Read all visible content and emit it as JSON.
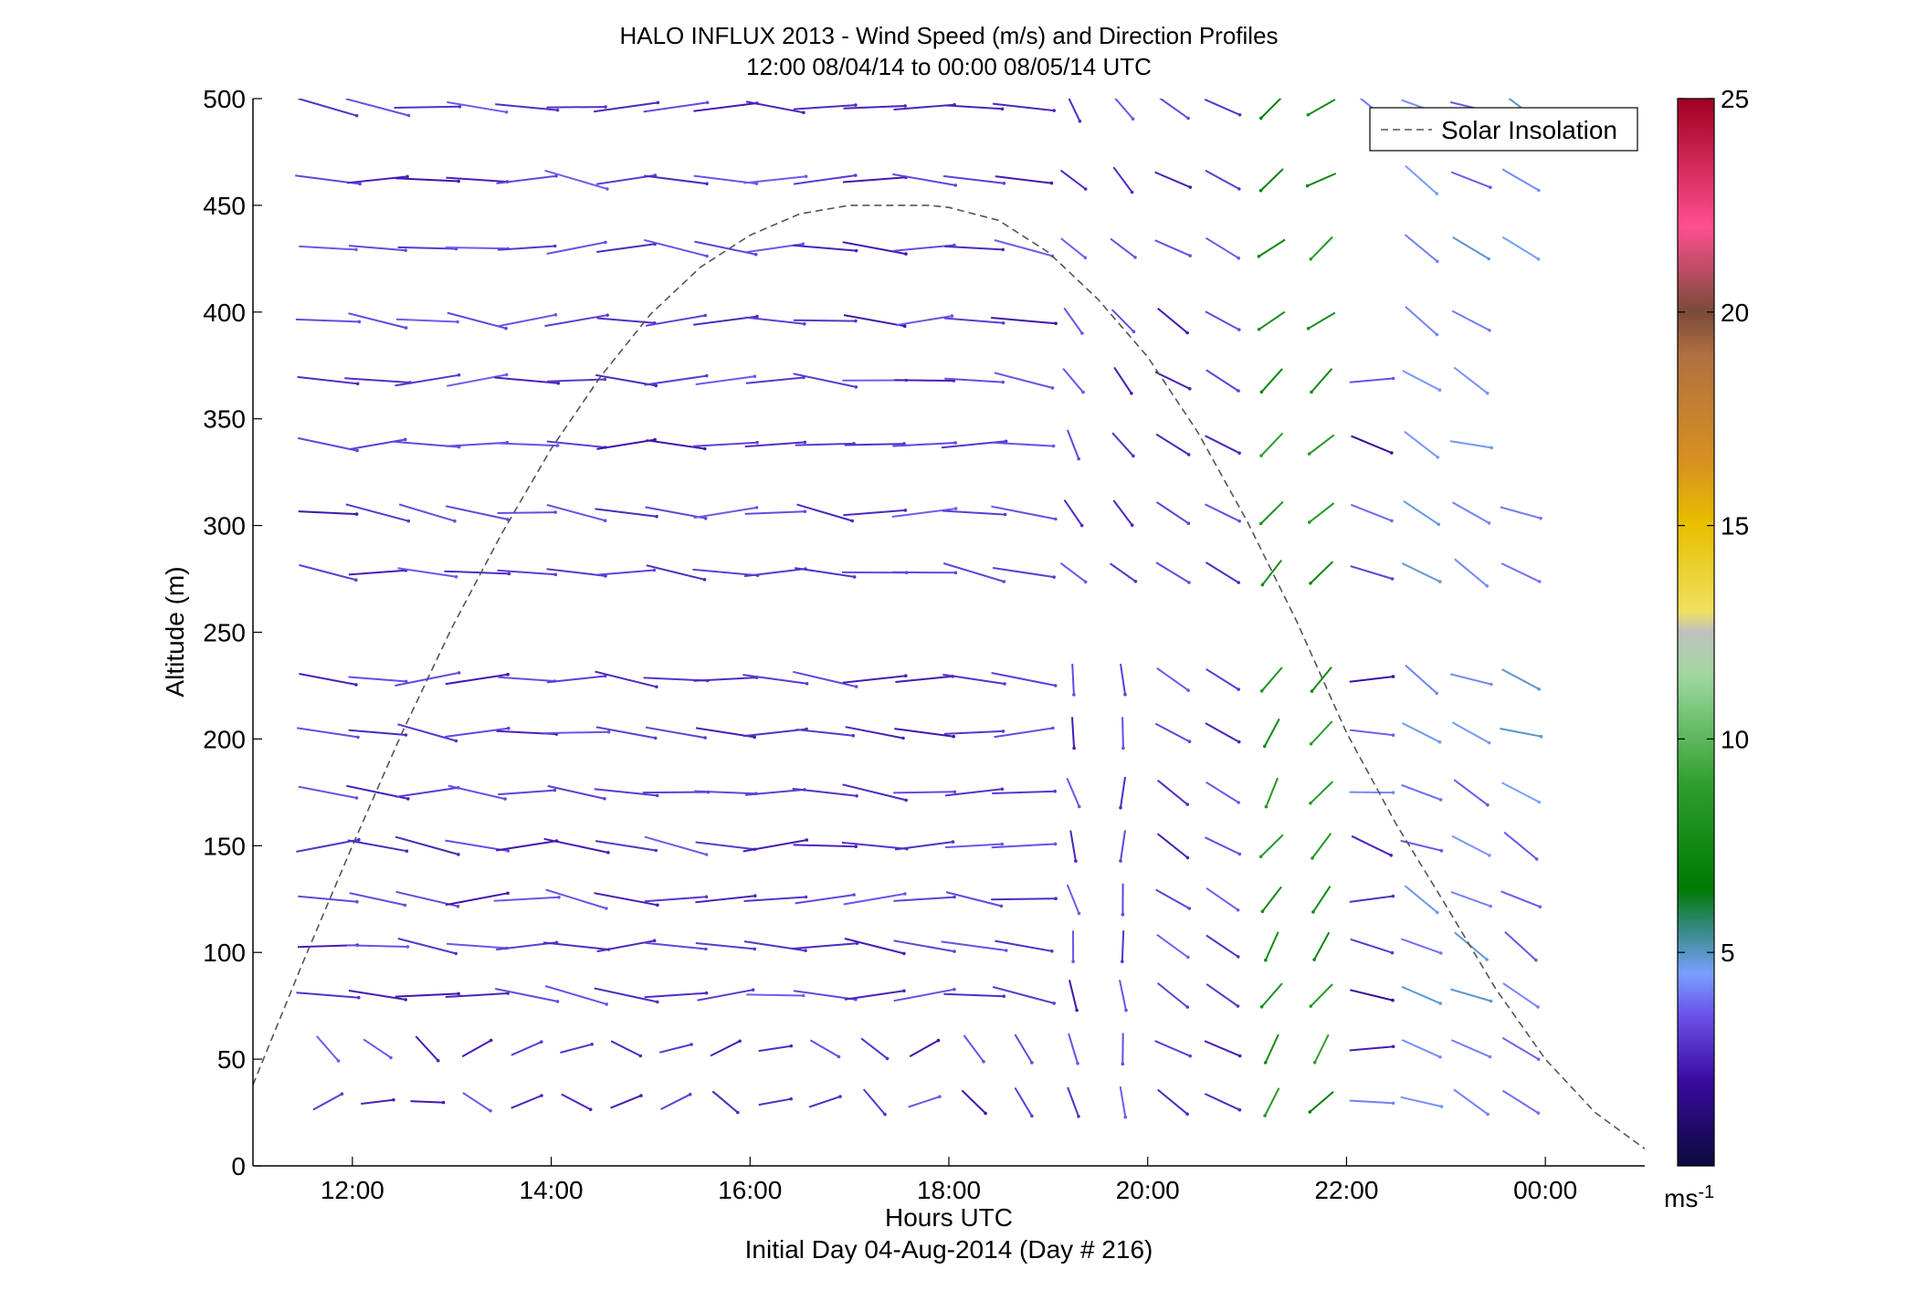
{
  "chart_data": {
    "type": "line",
    "title": "HALO INFLUX 2013 - Wind Speed (m/s) and Direction Profiles",
    "subtitle": "12:00 08/04/14 to 00:00 08/05/14  UTC",
    "xlabel": "Hours UTC",
    "xlabel2": "Initial Day 04-Aug-2014 (Day # 216)",
    "ylabel": "Altitude (m)",
    "xlim": [
      11.0,
      25.0
    ],
    "ylim": [
      0,
      500
    ],
    "x_ticks": [
      12,
      14,
      16,
      18,
      20,
      22,
      24
    ],
    "x_tick_labels": [
      "12:00",
      "14:00",
      "16:00",
      "18:00",
      "20:00",
      "22:00",
      "00:00"
    ],
    "y_ticks": [
      0,
      50,
      100,
      150,
      200,
      250,
      300,
      350,
      400,
      450,
      500
    ],
    "y_tick_labels": [
      "0",
      "50",
      "100",
      "150",
      "200",
      "250",
      "300",
      "350",
      "400",
      "450",
      "500"
    ],
    "grid": false,
    "legend": {
      "placement": "top-right",
      "entries": [
        "Solar Insolation"
      ]
    },
    "series": [
      {
        "name": "Solar Insolation",
        "style": "dashed",
        "color": "#555555",
        "x": [
          11.0,
          11.5,
          12.0,
          12.5,
          13.0,
          13.5,
          14.0,
          14.5,
          15.0,
          15.5,
          16.0,
          16.5,
          17.0,
          17.5,
          17.8,
          18.0,
          18.5,
          19.0,
          19.5,
          20.0,
          20.5,
          21.0,
          21.5,
          22.0,
          22.5,
          23.0,
          23.5,
          24.0,
          24.5,
          25.0
        ],
        "y": [
          38,
          95,
          150,
          203,
          252,
          296,
          336,
          370,
          399,
          421,
          436,
          446,
          450,
          450,
          450,
          449,
          443,
          428,
          406,
          379,
          344,
          302,
          255,
          203,
          160,
          122,
          83,
          50,
          25,
          8
        ]
      }
    ],
    "wind_profiles": {
      "note_units": "m/s",
      "times": [
        11.75,
        12.25,
        12.75,
        13.25,
        13.75,
        14.25,
        14.75,
        15.25,
        15.75,
        16.25,
        16.75,
        17.25,
        17.75,
        18.25,
        18.75,
        19.25,
        19.75,
        20.25,
        20.75,
        21.25,
        21.75,
        22.25,
        22.75,
        23.25,
        23.75
      ],
      "altitudes": [
        30,
        55,
        80,
        103,
        125,
        150,
        175,
        203,
        228,
        278,
        306,
        338,
        368,
        396,
        430,
        462,
        496
      ]
    },
    "colorbar": {
      "label": "ms",
      "label_superscript": "-1",
      "range": [
        0,
        25
      ],
      "ticks": [
        5,
        10,
        15,
        20,
        25
      ],
      "tick_labels": [
        "5",
        "10",
        "15",
        "20",
        "25"
      ],
      "stops": [
        {
          "v": 0,
          "c": "#0a0a3c"
        },
        {
          "v": 2,
          "c": "#3a0aa0"
        },
        {
          "v": 3.5,
          "c": "#6a50e8"
        },
        {
          "v": 4.5,
          "c": "#78a0ff"
        },
        {
          "v": 5.5,
          "c": "#3a8a8a"
        },
        {
          "v": 6.5,
          "c": "#007a00"
        },
        {
          "v": 9,
          "c": "#30a030"
        },
        {
          "v": 11.5,
          "c": "#a0d8a0"
        },
        {
          "v": 12.5,
          "c": "#c0c0c0"
        },
        {
          "v": 13,
          "c": "#f0e060"
        },
        {
          "v": 15,
          "c": "#e8c000"
        },
        {
          "v": 16.5,
          "c": "#d89020"
        },
        {
          "v": 19,
          "c": "#b07040"
        },
        {
          "v": 20,
          "c": "#7a4a3a"
        },
        {
          "v": 22,
          "c": "#ff4f90"
        },
        {
          "v": 25,
          "c": "#a00020"
        }
      ]
    }
  }
}
